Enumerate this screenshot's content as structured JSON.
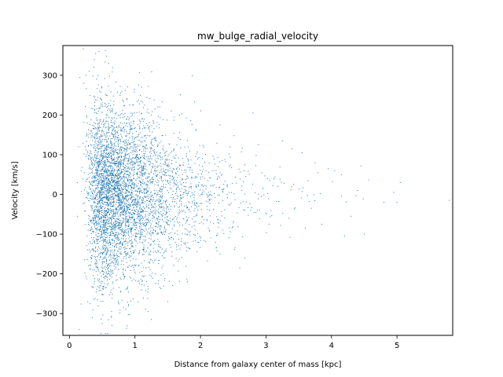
{
  "chart_data": {
    "type": "scatter",
    "title": "mw_bulge_radial_velocity",
    "xlabel": "Distance from galaxy center of mass [kpc]",
    "ylabel": "Velocity [km/s]",
    "xlim": [
      -0.1,
      5.85
    ],
    "ylim": [
      -355,
      375
    ],
    "xticks": [
      0,
      1,
      2,
      3,
      4,
      5
    ],
    "yticks": [
      -300,
      -200,
      -100,
      0,
      100,
      200,
      300
    ],
    "grid": false,
    "legend": "none",
    "marker_color": "#1f77b4",
    "approx_point_count": 5000,
    "points": [
      [
        0.12,
        -55
      ],
      [
        0.12,
        30
      ],
      [
        0.14,
        120
      ],
      [
        0.15,
        -340
      ],
      [
        0.16,
        295
      ],
      [
        0.18,
        60
      ],
      [
        0.22,
        280
      ],
      [
        0.25,
        300
      ],
      [
        0.28,
        -270
      ],
      [
        0.3,
        310
      ],
      [
        0.35,
        -310
      ],
      [
        0.38,
        340
      ],
      [
        0.4,
        355
      ],
      [
        0.45,
        360
      ],
      [
        0.5,
        -325
      ],
      [
        0.55,
        362
      ],
      [
        0.6,
        330
      ],
      [
        0.65,
        -330
      ],
      [
        0.8,
        260
      ],
      [
        0.9,
        -280
      ],
      [
        1.1,
        270
      ],
      [
        1.15,
        225
      ],
      [
        1.2,
        -295
      ],
      [
        1.25,
        -315
      ],
      [
        1.35,
        220
      ],
      [
        1.5,
        -270
      ],
      [
        1.6,
        195
      ],
      [
        1.8,
        -220
      ],
      [
        2.3,
        175
      ],
      [
        2.6,
        -185
      ],
      [
        2.8,
        205
      ],
      [
        3.25,
        135
      ],
      [
        3.4,
        115
      ],
      [
        3.55,
        105
      ],
      [
        3.6,
        -85
      ],
      [
        3.75,
        80
      ],
      [
        3.85,
        -75
      ],
      [
        3.95,
        65
      ],
      [
        4.05,
        60
      ],
      [
        4.15,
        50
      ],
      [
        4.2,
        -105
      ],
      [
        4.3,
        -55
      ],
      [
        4.4,
        10
      ],
      [
        4.45,
        72
      ],
      [
        4.5,
        -100
      ],
      [
        4.8,
        -20
      ],
      [
        4.95,
        5
      ],
      [
        5.0,
        -20
      ],
      [
        5.05,
        30
      ],
      [
        5.8,
        -15
      ]
    ]
  }
}
